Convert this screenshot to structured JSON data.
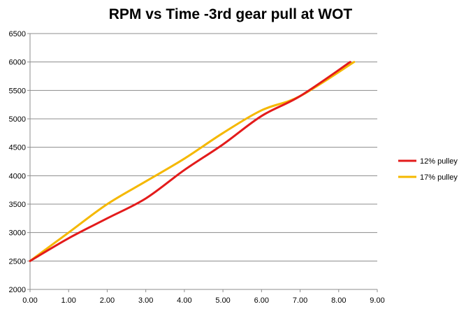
{
  "chart_data": {
    "type": "line",
    "title": "RPM vs Time -3rd gear pull at WOT",
    "xlabel": "",
    "ylabel": "",
    "xlim": [
      0,
      9
    ],
    "ylim": [
      2000,
      6500
    ],
    "x_ticks": [
      "0.00",
      "1.00",
      "2.00",
      "3.00",
      "4.00",
      "5.00",
      "6.00",
      "7.00",
      "8.00",
      "9.00"
    ],
    "y_ticks": [
      "2000",
      "2500",
      "3000",
      "3500",
      "4000",
      "4500",
      "5000",
      "5500",
      "6000",
      "6500"
    ],
    "grid": "horizontal",
    "legend_position": "right",
    "series": [
      {
        "name": "12% pulley",
        "color": "#e31b1b",
        "x": [
          0,
          1,
          2,
          3,
          4,
          5,
          6,
          7,
          8.3
        ],
        "y": [
          2500,
          2900,
          3250,
          3600,
          4100,
          4550,
          5050,
          5400,
          6000
        ]
      },
      {
        "name": "17% pulley",
        "color": "#f5b800",
        "x": [
          0,
          1,
          2,
          3,
          4,
          5,
          6,
          7,
          8.4
        ],
        "y": [
          2500,
          3000,
          3500,
          3900,
          4300,
          4750,
          5150,
          5400,
          6000
        ]
      }
    ]
  }
}
